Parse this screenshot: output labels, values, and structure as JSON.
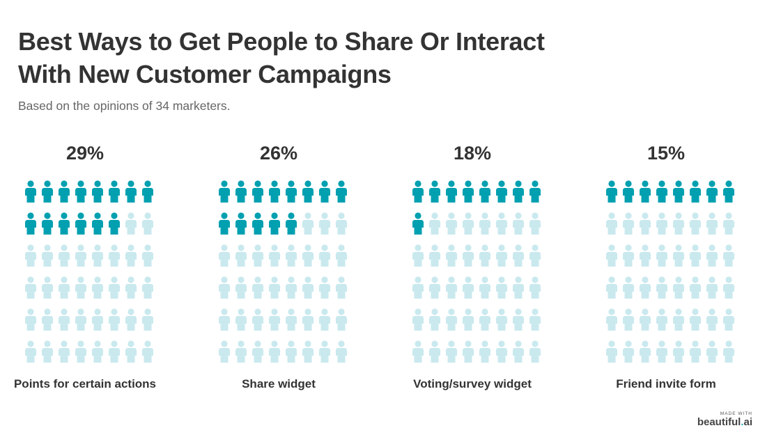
{
  "header": {
    "title": "Best Ways to Get People to Share Or Interact With New Customer Campaigns",
    "subtitle": "Based on the opinions of 34 marketers."
  },
  "colors": {
    "filled": "#00a0b0",
    "empty": "#c9e9ee",
    "text": "#333333"
  },
  "icon": "person-icon",
  "grid": {
    "columns": 8,
    "rows": 6,
    "total": 48
  },
  "columns": [
    {
      "percent": "29%",
      "label": "Points for certain actions",
      "filled": 14
    },
    {
      "percent": "26%",
      "label": "Share widget",
      "filled": 13
    },
    {
      "percent": "18%",
      "label": "Voting/survey widget",
      "filled": 9
    },
    {
      "percent": "15%",
      "label": "Friend invite form",
      "filled": 8
    }
  ],
  "branding": {
    "made_with": "MADE WITH",
    "name": "beautiful",
    "dot": ".",
    "suffix": "ai"
  },
  "chart_data": {
    "type": "pictograph",
    "title": "Best Ways to Get People to Share Or Interact With New Customer Campaigns",
    "subtitle": "Based on the opinions of 34 marketers.",
    "categories": [
      "Points for certain actions",
      "Share widget",
      "Voting/survey widget",
      "Friend invite form"
    ],
    "values": [
      29,
      26,
      18,
      15
    ],
    "unit": "%",
    "icons_per_category": 48,
    "filled_icons": [
      14,
      13,
      9,
      8
    ],
    "xlabel": "",
    "ylabel": ""
  }
}
